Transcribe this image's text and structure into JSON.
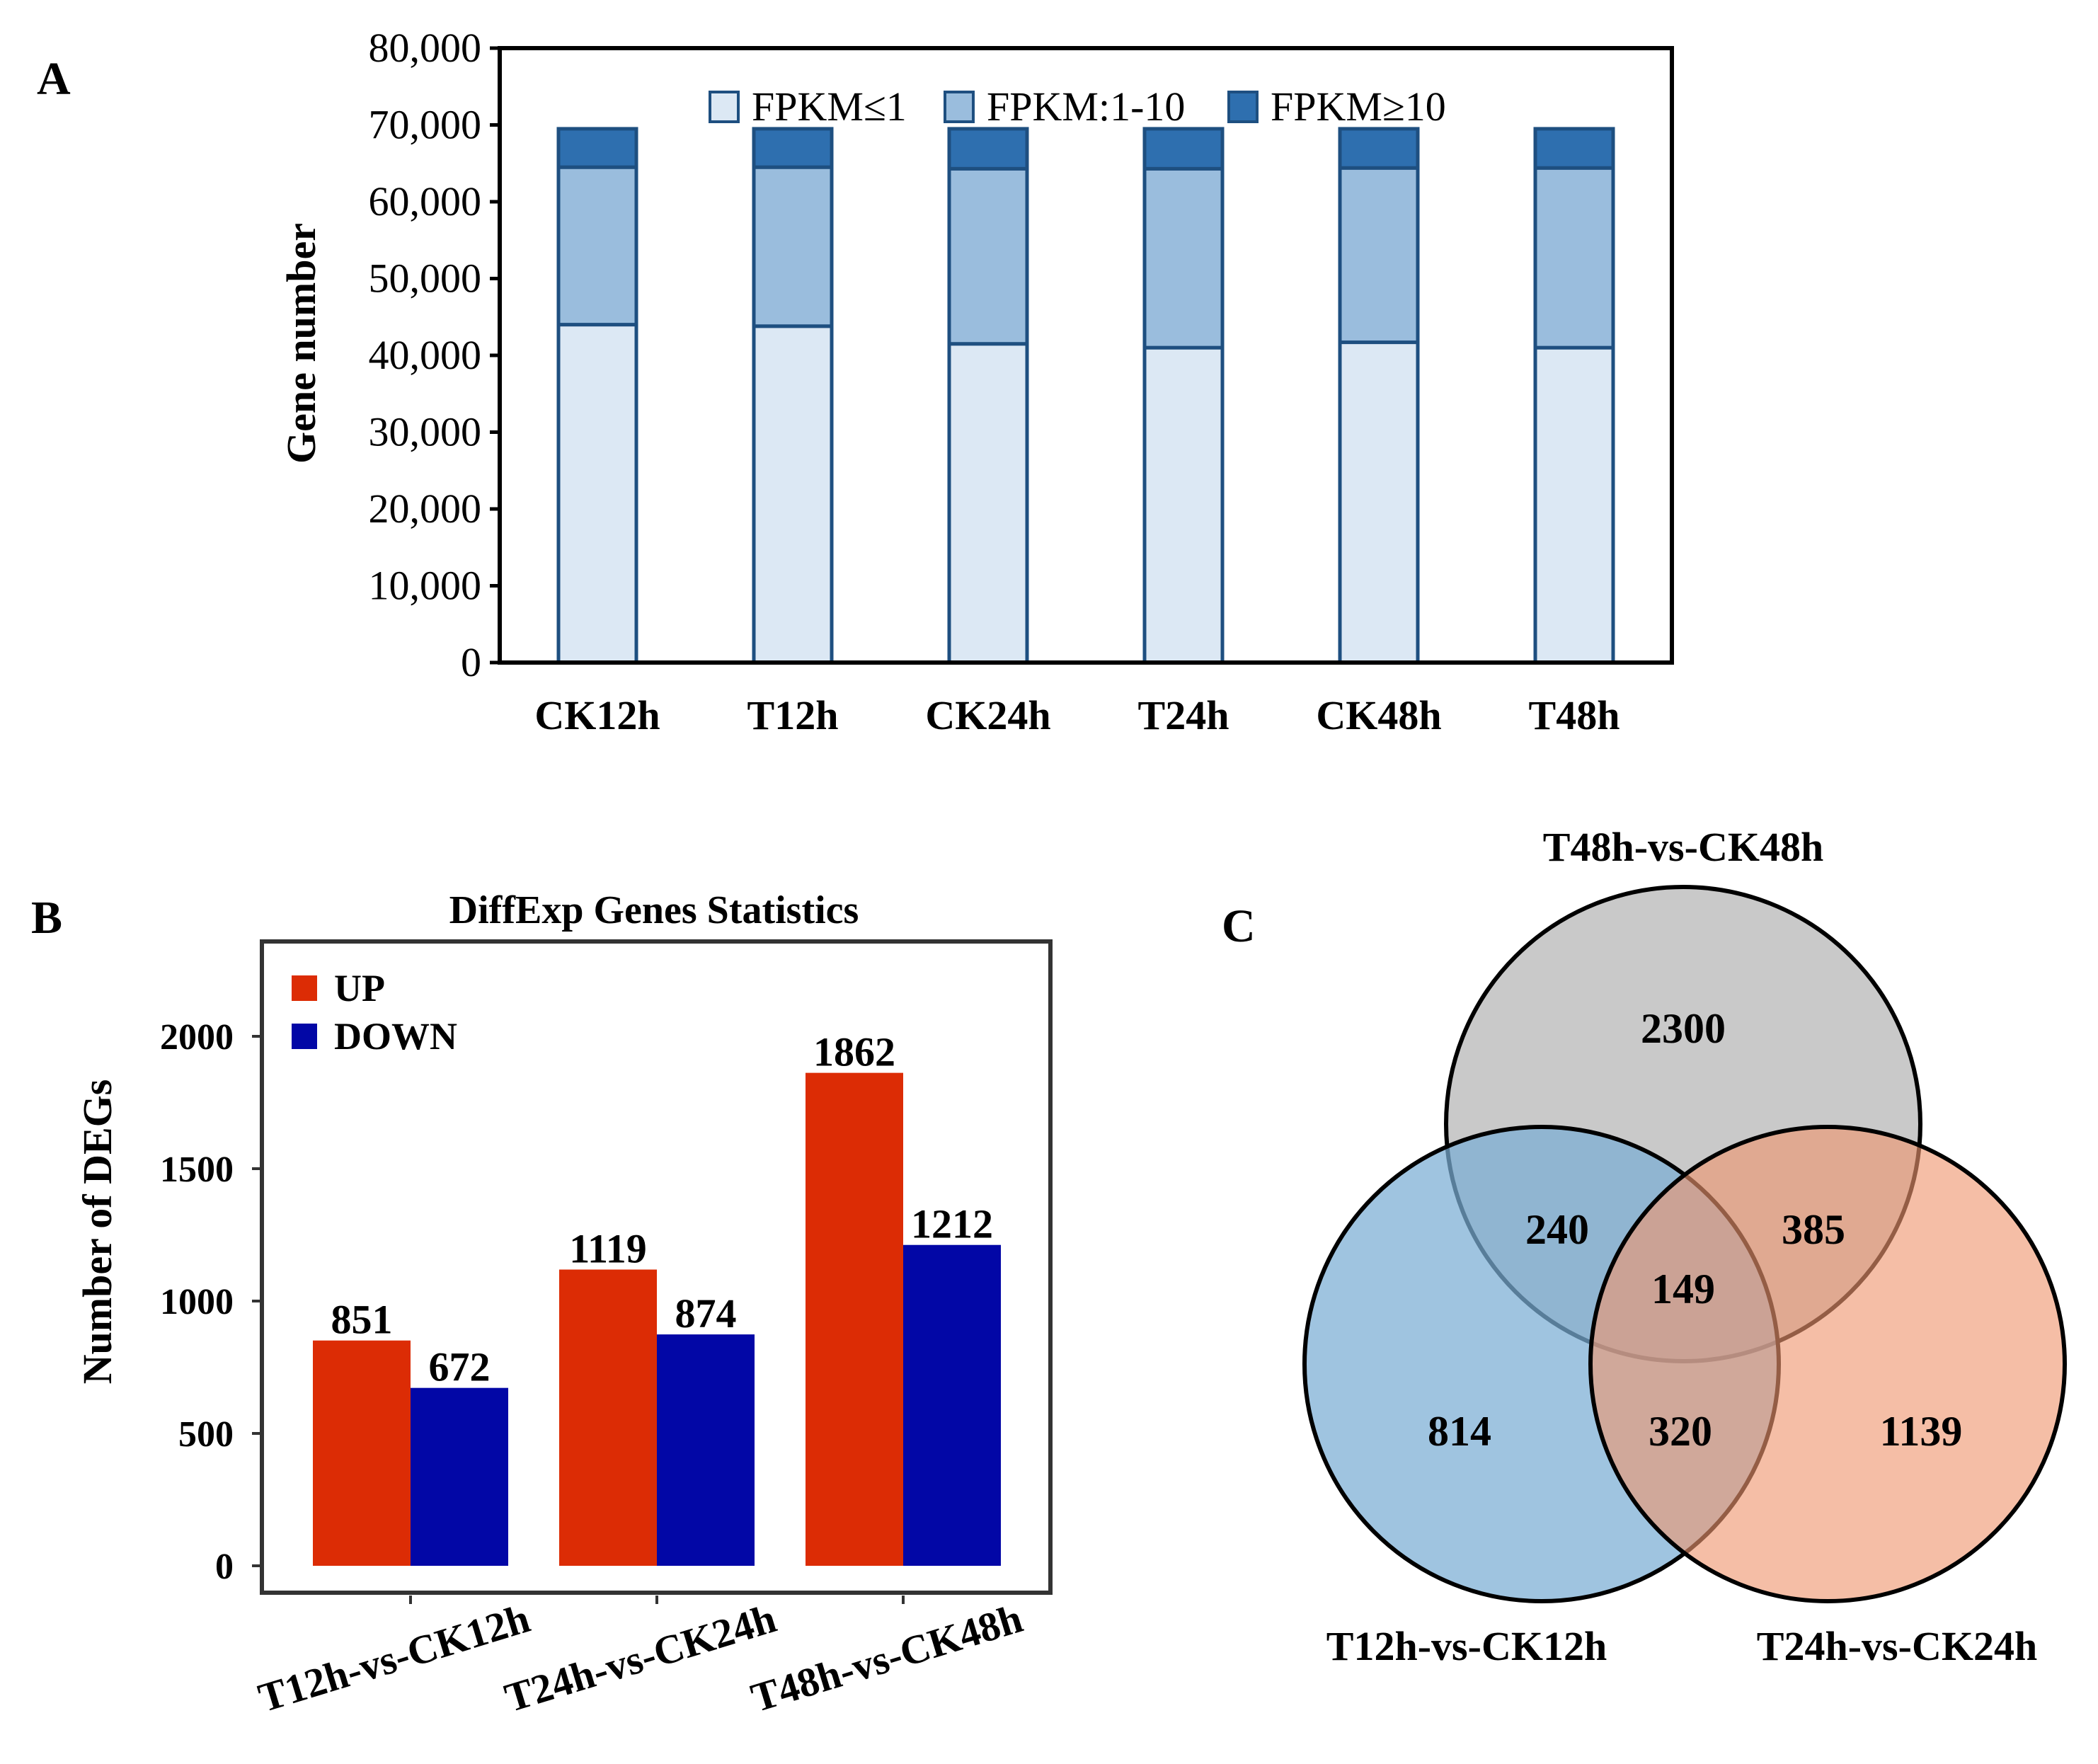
{
  "panels": {
    "a": "A",
    "b": "B",
    "c": "C"
  },
  "colors": {
    "low": "#dce8f4",
    "mid": "#9abddd",
    "high": "#2e6faf",
    "border": "#1e4f80",
    "up": "#dc2c05",
    "down": "#0207a6",
    "venn_top": "#c9c9c9",
    "venn_left": "#7aadd4",
    "venn_right": "#ef9670"
  },
  "chart_data": [
    {
      "id": "A",
      "type": "bar",
      "stacked": true,
      "title": "",
      "xlabel": "",
      "ylabel": "Gene number",
      "ylim": [
        0,
        80000
      ],
      "yticks": [
        0,
        10000,
        20000,
        30000,
        40000,
        50000,
        60000,
        70000,
        80000
      ],
      "ytick_labels": [
        "0",
        "10,000",
        "20,000",
        "30,000",
        "40,000",
        "50,000",
        "60,000",
        "70,000",
        "80,000"
      ],
      "categories": [
        "CK12h",
        "T12h",
        "CK24h",
        "T24h",
        "CK48h",
        "T48h"
      ],
      "series": [
        {
          "name": "FPKM≤1",
          "values": [
            44000,
            43800,
            41500,
            41000,
            41700,
            41000
          ]
        },
        {
          "name": "FPKM:1-10",
          "values": [
            20500,
            20700,
            22800,
            23300,
            22700,
            23400
          ]
        },
        {
          "name": "FPKM≥10",
          "values": [
            5000,
            5000,
            5200,
            5200,
            5100,
            5100
          ]
        }
      ],
      "legend": "top"
    },
    {
      "id": "B",
      "type": "bar",
      "title": "DiffExp Genes Statistics",
      "xlabel": "",
      "ylabel": "Number of DEGs",
      "ylim": [
        0,
        2400
      ],
      "yticks": [
        0,
        500,
        1000,
        1500,
        2000
      ],
      "ytick_labels": [
        "0",
        "500",
        "1000",
        "1500",
        "2000"
      ],
      "categories": [
        "T12h-vs-CK12h",
        "T24h-vs-CK24h",
        "T48h-vs-CK48h"
      ],
      "series": [
        {
          "name": "UP",
          "values": [
            851,
            1119,
            1862
          ]
        },
        {
          "name": "DOWN",
          "values": [
            672,
            874,
            1212
          ]
        }
      ],
      "legend": "top-left"
    },
    {
      "id": "C",
      "type": "venn",
      "sets": [
        "T48h-vs-CK48h",
        "T12h-vs-CK12h",
        "T24h-vs-CK24h"
      ],
      "regions": {
        "top_only": 2300,
        "top_left": 240,
        "top_right": 385,
        "all": 149,
        "left_only": 814,
        "left_right": 320,
        "right_only": 1139
      }
    }
  ]
}
